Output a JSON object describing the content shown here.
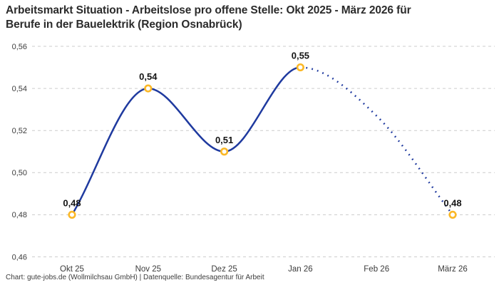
{
  "title": {
    "lines": [
      "Arbeitsmarkt Situation - Arbeitslose pro offene Stelle: Okt 2025 - März 2026 für",
      "Berufe in der Bauelektrik (Region Osnabrück)"
    ]
  },
  "footer": {
    "text": "Chart: gute-jobs.de (Wollmilchsau GmbH) | Datenquelle: Bundesagentur für Arbeit"
  },
  "colors": {
    "line": "#1f3a9f",
    "marker_ring": "#fbb827",
    "marker_fill": "#ffffff",
    "grid": "#cccccc",
    "title_text": "#2b2b2b",
    "tick_text": "#3c3c3c",
    "point_label_text": "#141414",
    "background": "#ffffff"
  },
  "chart_data": {
    "type": "line",
    "title": "Arbeitsmarkt Situation - Arbeitslose pro offene Stelle: Okt 2025 - März 2026 für Berufe in der Bauelektrik (Region Osnabrück)",
    "categories": [
      "Okt 25",
      "Nov 25",
      "Dez 25",
      "Jan 26",
      "Feb 26",
      "März 26"
    ],
    "points": [
      {
        "category": "Okt 25",
        "value": 0.48,
        "label": "0,48",
        "marker": true,
        "segment": "actual"
      },
      {
        "category": "Nov 25",
        "value": 0.54,
        "label": "0,54",
        "marker": true,
        "segment": "actual"
      },
      {
        "category": "Dez 25",
        "value": 0.51,
        "label": "0,51",
        "marker": true,
        "segment": "actual"
      },
      {
        "category": "Jan 26",
        "value": 0.55,
        "label": "0,55",
        "marker": true,
        "segment": "actual"
      },
      {
        "category": "Feb 26",
        "value": 0.527,
        "label": null,
        "marker": false,
        "segment": "forecast",
        "estimated": true
      },
      {
        "category": "März 26",
        "value": 0.48,
        "label": "0,48",
        "marker": true,
        "segment": "forecast"
      }
    ],
    "line_style": {
      "actual": "solid",
      "forecast": "dotted"
    },
    "ylim": [
      0.46,
      0.56
    ],
    "yticks": [
      {
        "value": 0.56,
        "label": "0,56"
      },
      {
        "value": 0.54,
        "label": "0,54"
      },
      {
        "value": 0.52,
        "label": "0,52"
      },
      {
        "value": 0.5,
        "label": "0,50"
      },
      {
        "value": 0.48,
        "label": "0,48"
      },
      {
        "value": 0.46,
        "label": "0,46"
      }
    ],
    "grid": "dashed-horizontal",
    "legend": "none"
  }
}
